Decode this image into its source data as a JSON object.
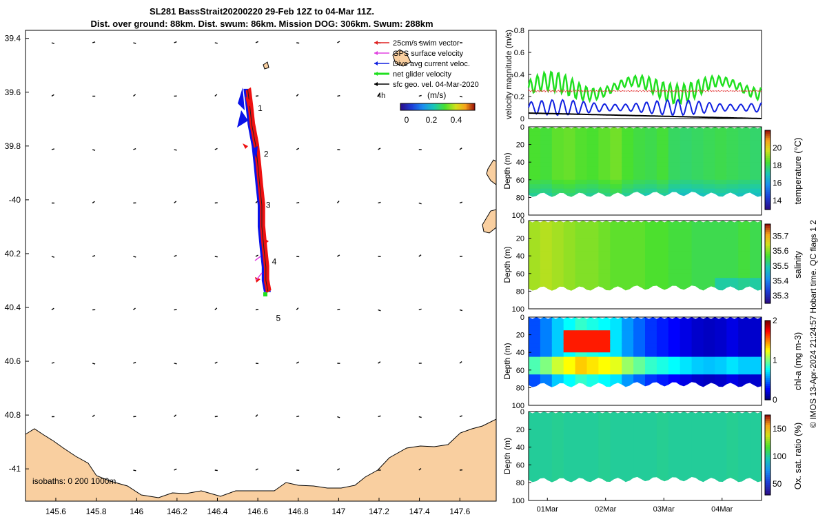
{
  "title": {
    "line1": "SL281 BassStrait20200220 29-Feb 12Z to 04-Mar 11Z.",
    "line2": "Dist. over ground: 88km. Dist. swum: 86km. Mission DOG: 306km. Swum: 288km"
  },
  "colors": {
    "land": "#f9cfa0",
    "swim_vector": "#e02020",
    "gps_velocity": "#e040e0",
    "current_velocity": "#1020e0",
    "glider_velocity": "#20e020",
    "geo_velocity": "#000000",
    "track_fill_blue": "#0a12e8",
    "track_fill_red": "#ee1010"
  },
  "chart_data": [
    {
      "type": "map",
      "xlim": [
        145.45,
        147.78
      ],
      "ylim": [
        -41.12,
        -39.37
      ],
      "x_ticks": [
        145.6,
        145.8,
        146,
        146.2,
        146.4,
        146.6,
        146.8,
        147,
        147.2,
        147.4,
        147.6
      ],
      "x_tick_labels": [
        "145.6",
        "145.8",
        "146",
        "146.2",
        "146.4",
        "146.6",
        "146.8",
        "147",
        "147.2",
        "147.4",
        "147.6"
      ],
      "y_ticks": [
        -39.4,
        -39.6,
        -39.8,
        -40,
        -40.2,
        -40.4,
        -40.6,
        -40.8,
        -41
      ],
      "y_tick_labels": [
        "39.4",
        "39.6",
        "39.8",
        "-40",
        "40.2",
        "40.4",
        "40.6",
        "40.8",
        "-41"
      ],
      "track_lon": [
        146.55,
        146.56,
        146.57,
        146.59,
        146.6,
        146.61,
        146.62,
        146.62,
        146.63,
        146.64,
        146.64,
        146.65
      ],
      "track_lat": [
        -39.59,
        -39.65,
        -39.72,
        -39.8,
        -39.87,
        -39.95,
        -40.02,
        -40.1,
        -40.18,
        -40.25,
        -40.3,
        -40.34
      ],
      "day_markers": [
        {
          "label": "1",
          "lon": 146.6,
          "lat": -39.66
        },
        {
          "label": "2",
          "lon": 146.63,
          "lat": -39.83
        },
        {
          "label": "3",
          "lon": 146.64,
          "lat": -40.02
        },
        {
          "label": "4",
          "lon": 146.67,
          "lat": -40.23
        },
        {
          "label": "5",
          "lon": 146.69,
          "lat": -40.44
        }
      ],
      "legend": [
        {
          "label": "25cm/s swim vector",
          "color_key": "swim_vector"
        },
        {
          "label": "GPS surface velocity",
          "color_key": "gps_velocity"
        },
        {
          "label": "Dive avg current veloc.",
          "color_key": "current_velocity"
        },
        {
          "label": "net glider velocity",
          "color_key": "glider_velocity"
        },
        {
          "label": "sfc geo. vel. 04-Mar-2020",
          "color_key": "geo_velocity"
        }
      ],
      "legend_extra": "4h",
      "colorbar": {
        "label": "(m/s)",
        "ticks": [
          "0",
          "0.2",
          "0.4"
        ],
        "range": [
          -0.05,
          0.55
        ]
      },
      "isobaths_label": "isobaths: 0   200  1000m"
    },
    {
      "type": "line",
      "ylabel": "velocity magnitude (m/s)",
      "ylim": [
        0,
        0.8
      ],
      "y_ticks": [
        "0",
        "0.2",
        "0.4",
        "0.6",
        "0.8"
      ],
      "x_range_days": [
        0,
        4
      ],
      "series": [
        {
          "color_key": "glider_velocity",
          "base": 0.28,
          "amp": 0.09,
          "period": 0.12
        },
        {
          "color_key": "swim_vector",
          "base": 0.25,
          "amp": 0.01,
          "period": 0.05
        },
        {
          "color_key": "current_velocity",
          "base": 0.1,
          "amp": 0.07,
          "period": 0.18
        },
        {
          "color_key": "geo_velocity",
          "values_start": 0.05,
          "values_end": 0.0
        }
      ]
    },
    {
      "type": "heatmap",
      "variable": "temperature",
      "colorbar_label": "temperature (°C)",
      "colorbar_ticks": [
        "14",
        "16",
        "18",
        "20"
      ],
      "colorbar_range": [
        13,
        22
      ],
      "ylabel": "Depth (m)",
      "y_ticks": [
        "0",
        "20",
        "40",
        "60",
        "80",
        "100"
      ],
      "ylim": [
        0,
        100
      ],
      "column_values": [
        18.4,
        18.3,
        18.6,
        18.7,
        18.5,
        18.4,
        18.6,
        18.8,
        18.4,
        18.2,
        18.1,
        18.3,
        17.9,
        17.8,
        17.9,
        18.0,
        18.1,
        18.0,
        17.9,
        17.8
      ],
      "bottom_depth": 80
    },
    {
      "type": "heatmap",
      "variable": "salinity",
      "colorbar_label": "salinity",
      "colorbar_ticks": [
        "35.3",
        "35.4",
        "35.5",
        "35.6",
        "35.7"
      ],
      "colorbar_range": [
        35.25,
        35.78
      ],
      "ylabel": "Depth (m)",
      "y_ticks": [
        "0",
        "20",
        "40",
        "60",
        "80",
        "100"
      ],
      "ylim": [
        0,
        100
      ],
      "column_values": [
        35.62,
        35.63,
        35.62,
        35.61,
        35.6,
        35.6,
        35.59,
        35.58,
        35.58,
        35.58,
        35.57,
        35.57,
        35.56,
        35.56,
        35.55,
        35.55,
        35.55,
        35.55,
        35.56,
        35.55
      ],
      "bottom_depth": 80
    },
    {
      "type": "heatmap",
      "variable": "chl-a",
      "colorbar_label": "chl-a (mg m-3)",
      "colorbar_ticks": [
        "0",
        "1",
        "2"
      ],
      "colorbar_range": [
        0,
        2
      ],
      "ylabel": "Depth (m)",
      "y_ticks": [
        "0",
        "20",
        "40",
        "60",
        "80",
        "100"
      ],
      "ylim": [
        0,
        100
      ],
      "column_values": [
        0.55,
        0.65,
        0.8,
        0.9,
        1.0,
        0.95,
        0.9,
        0.85,
        0.7,
        0.6,
        0.5,
        0.45,
        0.4,
        0.35,
        0.3,
        0.28,
        0.3,
        0.35,
        0.3,
        0.3
      ],
      "bottom_depth": 80
    },
    {
      "type": "heatmap",
      "variable": "oxygen saturation",
      "colorbar_label": "Ox. sat. ratio (%)",
      "colorbar_ticks": [
        "50",
        "100",
        "150"
      ],
      "colorbar_range": [
        30,
        175
      ],
      "ylabel": "Depth (m)",
      "y_ticks": [
        "0",
        "20",
        "40",
        "60",
        "80",
        "100"
      ],
      "ylim": [
        0,
        100
      ],
      "x_tick_labels": [
        "01Mar",
        "02Mar",
        "03Mar",
        "04Mar"
      ],
      "column_values": [
        100,
        100,
        101,
        100,
        100,
        100,
        101,
        100,
        100,
        100,
        100,
        101,
        100,
        100,
        100,
        100,
        100,
        101,
        100,
        100
      ],
      "bottom_depth": 80
    }
  ],
  "side_label": "© IMOS 13-Apr-2024 21:24:57 Hobart time. QC flags 1  2"
}
